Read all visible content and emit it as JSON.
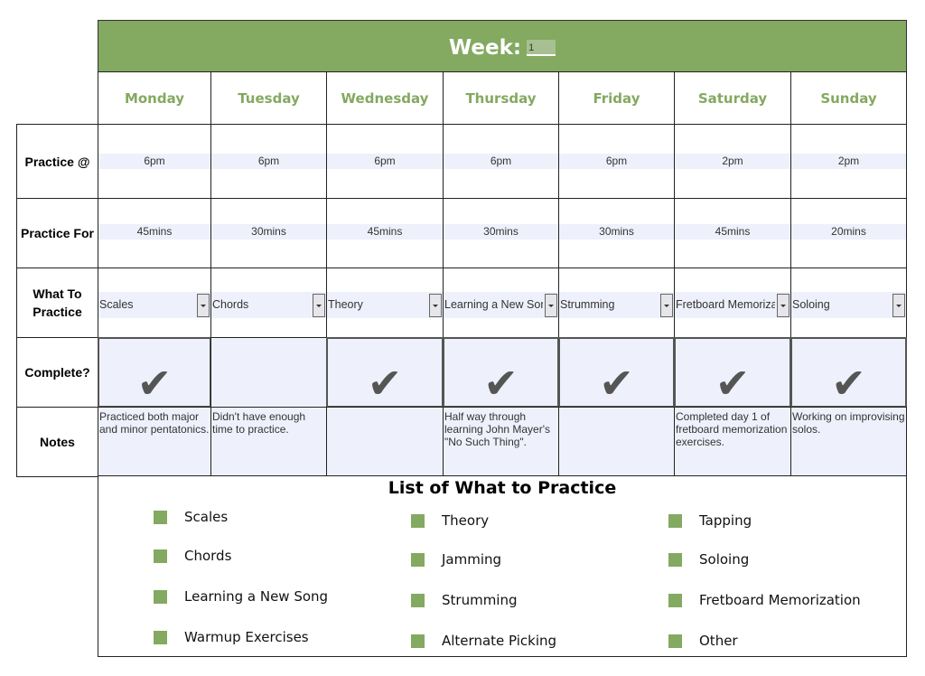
{
  "header": {
    "title": "Week:",
    "week_value": "1"
  },
  "row_labels": [
    "Practice @",
    "Practice For",
    "What To Practice",
    "Complete?",
    "Notes"
  ],
  "days": [
    {
      "name": "Monday",
      "time": "6pm",
      "duration": "45mins",
      "activity": "Scales",
      "complete": true,
      "notes": "Practiced both major and minor pentatonics."
    },
    {
      "name": "Tuesday",
      "time": "6pm",
      "duration": "30mins",
      "activity": "Chords",
      "complete": false,
      "notes": "Didn't have enough time to practice."
    },
    {
      "name": "Wednesday",
      "time": "6pm",
      "duration": "45mins",
      "activity": "Theory",
      "complete": true,
      "notes": ""
    },
    {
      "name": "Thursday",
      "time": "6pm",
      "duration": "30mins",
      "activity": "Learning a New Song",
      "complete": true,
      "notes": "Half way through learning John Mayer's \"No Such Thing\"."
    },
    {
      "name": "Friday",
      "time": "6pm",
      "duration": "30mins",
      "activity": "Strumming",
      "complete": true,
      "notes": ""
    },
    {
      "name": "Saturday",
      "time": "2pm",
      "duration": "45mins",
      "activity": "Fretboard Memorization",
      "complete": true,
      "notes": "Completed day 1 of fretboard memorization exercises."
    },
    {
      "name": "Sunday",
      "time": "2pm",
      "duration": "20mins",
      "activity": "Soloing",
      "complete": true,
      "notes": "Working on improvising solos."
    }
  ],
  "check_icon": "✔",
  "list": {
    "title": "List of What to Practice",
    "columns": [
      [
        "Scales",
        "Chords",
        "Learning a New Song",
        "Warmup Exercises"
      ],
      [
        "Theory",
        "Jamming",
        "Strumming",
        "Alternate Picking"
      ],
      [
        "Tapping",
        "Soloing",
        "Fretboard Memorization",
        "Other"
      ]
    ]
  },
  "colors": {
    "accent": "#84a961",
    "cell_fill": "#eef1fb",
    "check": "#555555"
  }
}
